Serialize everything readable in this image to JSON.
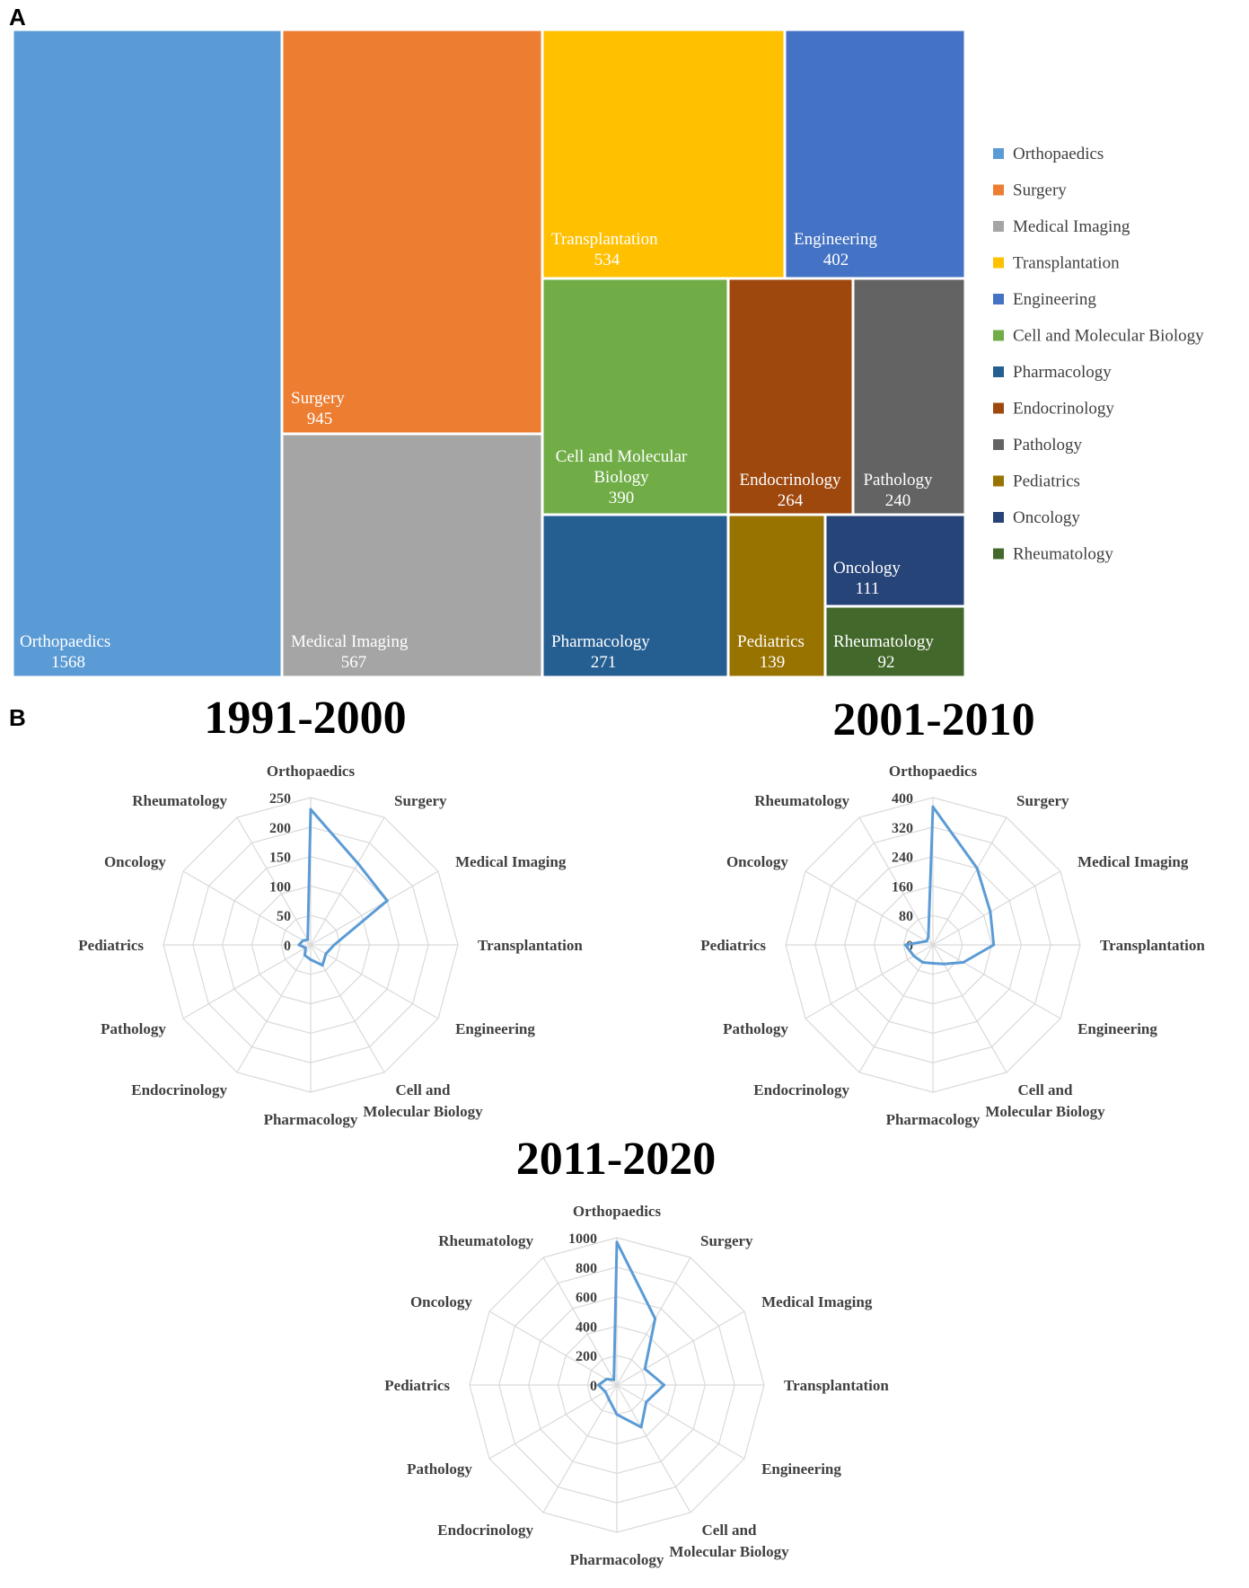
{
  "panels": {
    "a": "A",
    "b": "B"
  },
  "chart_data": [
    {
      "type": "treemap",
      "categories": [
        "Orthopaedics",
        "Surgery",
        "Medical Imaging",
        "Transplantation",
        "Engineering",
        "Cell and Molecular Biology",
        "Pharmacology",
        "Endocrinology",
        "Pathology",
        "Pediatrics",
        "Oncology",
        "Rheumatology"
      ],
      "values": [
        1568,
        945,
        567,
        534,
        402,
        390,
        271,
        264,
        240,
        139,
        111,
        92
      ],
      "labels": [
        [
          "Orthopaedics"
        ],
        [
          "Surgery"
        ],
        [
          "Medical Imaging"
        ],
        [
          "Transplantation"
        ],
        [
          "Engineering"
        ],
        [
          "Cell and Molecular",
          "Biology"
        ],
        [
          "Pharmacology"
        ],
        [
          "Endocrinology"
        ],
        [
          "Pathology"
        ],
        [
          "Pediatrics"
        ],
        [
          "Oncology"
        ],
        [
          "Rheumatology"
        ]
      ],
      "colors": [
        "#5b9bd5",
        "#ed7d31",
        "#a5a5a5",
        "#ffc000",
        "#4472c4",
        "#70ad47",
        "#255e91",
        "#9e480e",
        "#636363",
        "#997300",
        "#264478",
        "#43682b"
      ],
      "legend": [
        "Orthopaedics",
        "Surgery",
        "Medical Imaging",
        "Transplantation",
        "Engineering",
        "Cell and Molecular Biology",
        "Pharmacology",
        "Endocrinology",
        "Pathology",
        "Pediatrics",
        "Oncology",
        "Rheumatology"
      ],
      "legend_position": "right"
    },
    {
      "type": "radar",
      "title": "1991-2000",
      "axes": [
        "Orthopaedics",
        "Surgery",
        "Medical Imaging",
        "Transplantation",
        "Engineering",
        "Cell and Molecular Biology",
        "Pharmacology",
        "Endocrinology",
        "Pathology",
        "Pediatrics",
        "Oncology",
        "Rheumatology"
      ],
      "axis_labels": [
        [
          "Orthopaedics"
        ],
        [
          "Surgery"
        ],
        [
          "Medical Imaging"
        ],
        [
          "Transplantation"
        ],
        [
          "Engineering"
        ],
        [
          "Cell and",
          "Molecular Biology"
        ],
        [
          "Pharmacology"
        ],
        [
          "Endocrinology"
        ],
        [
          "Pathology"
        ],
        [
          "Pediatrics"
        ],
        [
          "Oncology"
        ],
        [
          "Rheumatology"
        ]
      ],
      "values": [
        230,
        160,
        150,
        40,
        30,
        40,
        25,
        20,
        10,
        20,
        15,
        10
      ],
      "ticks": [
        0,
        50,
        100,
        150,
        200,
        250
      ],
      "tick_labels": [
        "0",
        "50",
        "100",
        "150",
        "200",
        "250"
      ],
      "rlim": [
        0,
        250
      ],
      "line_color": "#5b9bd5"
    },
    {
      "type": "radar",
      "title": "2001-2010",
      "axes": [
        "Orthopaedics",
        "Surgery",
        "Medical Imaging",
        "Transplantation",
        "Engineering",
        "Cell and Molecular Biology",
        "Pharmacology",
        "Endocrinology",
        "Pathology",
        "Pediatrics",
        "Oncology",
        "Rheumatology"
      ],
      "axis_labels": [
        [
          "Orthopaedics"
        ],
        [
          "Surgery"
        ],
        [
          "Medical Imaging"
        ],
        [
          "Transplantation"
        ],
        [
          "Engineering"
        ],
        [
          "Cell and",
          "Molecular Biology"
        ],
        [
          "Pharmacology"
        ],
        [
          "Endocrinology"
        ],
        [
          "Pathology"
        ],
        [
          "Pediatrics"
        ],
        [
          "Oncology"
        ],
        [
          "Rheumatology"
        ]
      ],
      "values": [
        375,
        240,
        180,
        165,
        95,
        60,
        50,
        55,
        60,
        75,
        20,
        25
      ],
      "ticks": [
        0,
        80,
        160,
        240,
        320,
        400
      ],
      "tick_labels": [
        "0",
        "80",
        "160",
        "240",
        "320",
        "400"
      ],
      "rlim": [
        0,
        400
      ],
      "line_color": "#5b9bd5"
    },
    {
      "type": "radar",
      "title": "2011-2020",
      "axes": [
        "Orthopaedics",
        "Surgery",
        "Medical Imaging",
        "Transplantation",
        "Engineering",
        "Cell and Molecular Biology",
        "Pharmacology",
        "Endocrinology",
        "Pathology",
        "Pediatrics",
        "Oncology",
        "Rheumatology"
      ],
      "axis_labels": [
        [
          "Orthopaedics"
        ],
        [
          "Surgery"
        ],
        [
          "Medical Imaging"
        ],
        [
          "Transplantation"
        ],
        [
          "Engineering"
        ],
        [
          "Cell and",
          "Molecular Biology"
        ],
        [
          "Pharmacology"
        ],
        [
          "Endocrinology"
        ],
        [
          "Pathology"
        ],
        [
          "Pediatrics"
        ],
        [
          "Oncology"
        ],
        [
          "Rheumatology"
        ]
      ],
      "values": [
        970,
        520,
        220,
        320,
        230,
        330,
        200,
        110,
        90,
        125,
        80,
        40
      ],
      "ticks": [
        0,
        200,
        400,
        600,
        800,
        1000
      ],
      "tick_labels": [
        "0",
        "200",
        "400",
        "600",
        "800",
        "1000"
      ],
      "rlim": [
        0,
        1000
      ],
      "line_color": "#5b9bd5"
    }
  ]
}
